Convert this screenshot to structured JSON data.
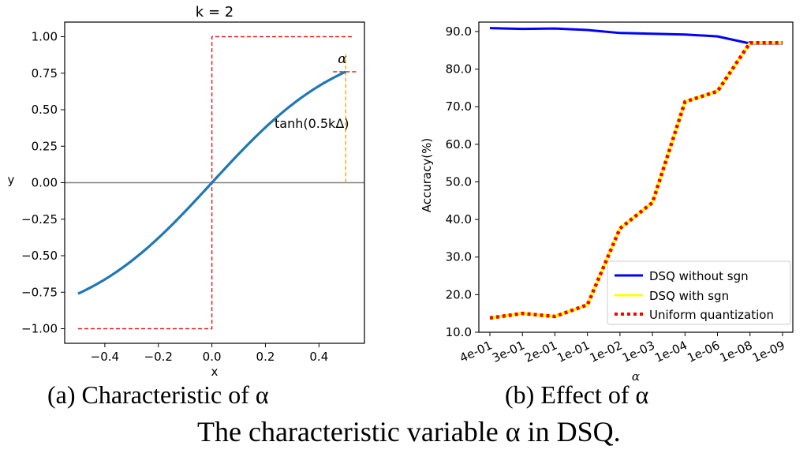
{
  "chart_data": [
    {
      "type": "line",
      "title": "k = 2",
      "xlabel": "x",
      "ylabel": "y",
      "xlim": [
        -0.55,
        0.57
      ],
      "ylim": [
        -1.1,
        1.1
      ],
      "xticks": [
        -0.4,
        -0.2,
        0.0,
        0.2,
        0.4
      ],
      "xtick_labels": [
        "−0.4",
        "−0.2",
        "0.0",
        "0.2",
        "0.4"
      ],
      "yticks": [
        1.0,
        0.75,
        0.5,
        0.25,
        0.0,
        -0.25,
        -0.5,
        -0.75,
        -1.0
      ],
      "ytick_labels": [
        "1.00",
        "0.75",
        "0.50",
        "0.25",
        "0.00",
        "−0.25",
        "−0.50",
        "−0.75",
        "−1.00"
      ],
      "k": 2,
      "curve": {
        "name": "tanh curve",
        "x_range": [
          -0.5,
          0.5
        ],
        "endpoint_value": 0.76
      },
      "step": {
        "name": "sign step",
        "x_range": [
          -0.5,
          0.53
        ],
        "low": -1.0,
        "high": 1.0
      },
      "alpha_marker": {
        "x": 0.5,
        "y": 0.76,
        "y_from": 0.0,
        "y_to": 0.88
      },
      "annotations": {
        "alpha": "α",
        "tanh": "tanh(0.5kΔ)"
      },
      "colors": {
        "curve": "#1f77b4",
        "step": "#e41a1c",
        "alpha_line": "#ffa500",
        "zero_line": "#808080"
      }
    },
    {
      "type": "line",
      "xlabel": "α",
      "ylabel": "Accuracy(%)",
      "ylim": [
        10.0,
        92.5
      ],
      "categories": [
        "4e-01",
        "3e-01",
        "2e-01",
        "1e-01",
        "1e-02",
        "1e-03",
        "1e-04",
        "1e-06",
        "1e-08",
        "1e-09"
      ],
      "yticks": [
        10.0,
        20.0,
        30.0,
        40.0,
        50.0,
        60.0,
        70.0,
        80.0,
        90.0
      ],
      "ytick_labels": [
        "10.0",
        "20.0",
        "30.0",
        "40.0",
        "50.0",
        "60.0",
        "70.0",
        "80.0",
        "90.0"
      ],
      "series": [
        {
          "name": "DSQ without sgn",
          "color": "#0000ff",
          "style": "solid",
          "values": [
            90.9,
            90.7,
            90.8,
            90.4,
            89.6,
            89.4,
            89.2,
            88.7,
            86.8,
            86.8
          ]
        },
        {
          "name": "DSQ with sgn",
          "color": "#ffff00",
          "style": "solid",
          "values": [
            13.8,
            15.0,
            14.2,
            17.3,
            37.6,
            44.5,
            71.3,
            74.1,
            87.0,
            87.0
          ]
        },
        {
          "name": "Uniform quantization",
          "color": "#ff0000",
          "style": "dotted",
          "values": [
            13.8,
            15.0,
            14.2,
            17.3,
            37.6,
            44.5,
            71.3,
            74.1,
            87.0,
            87.0
          ]
        }
      ],
      "legend": "bottom-right"
    }
  ],
  "captions": {
    "a": "(a) Characteristic of α",
    "b": "(b) Effect of α",
    "main": "The characteristic variable α in DSQ."
  }
}
